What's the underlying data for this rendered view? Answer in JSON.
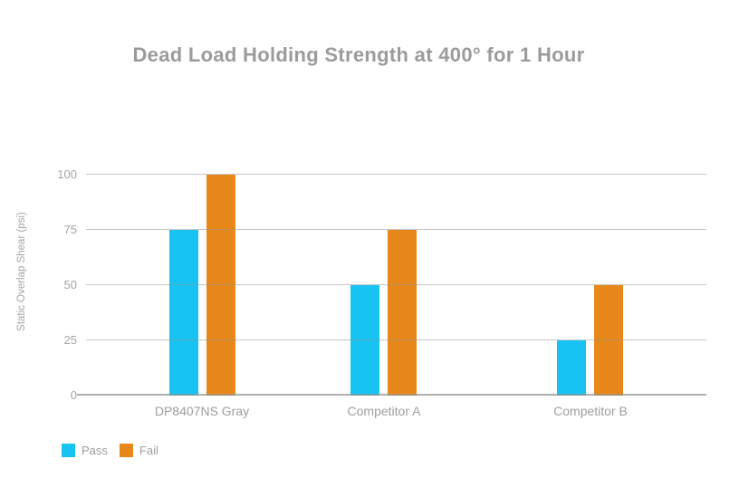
{
  "chart_data": {
    "type": "bar",
    "title": "Dead Load Holding Strength at 400° for 1 Hour",
    "ylabel": "Static Overlap Shear (psi)",
    "xlabel": "",
    "categories": [
      "DP8407NS Gray",
      "Competitor A",
      "Competitor B"
    ],
    "series": [
      {
        "name": "Pass",
        "color": "#17C3F3",
        "values": [
          75,
          50,
          25
        ]
      },
      {
        "name": "Fail",
        "color": "#E8871A",
        "values": [
          100,
          75,
          50
        ]
      }
    ],
    "ylim": [
      0,
      100
    ],
    "yticks": [
      0,
      25,
      50,
      75,
      100
    ],
    "grid": true,
    "legend_position": "bottom-left",
    "colors": {
      "title_text": "#9B9B9B",
      "axis_text": "#A4A4A4",
      "gridline": "#CACACA",
      "background": "#FFFFFF"
    }
  }
}
